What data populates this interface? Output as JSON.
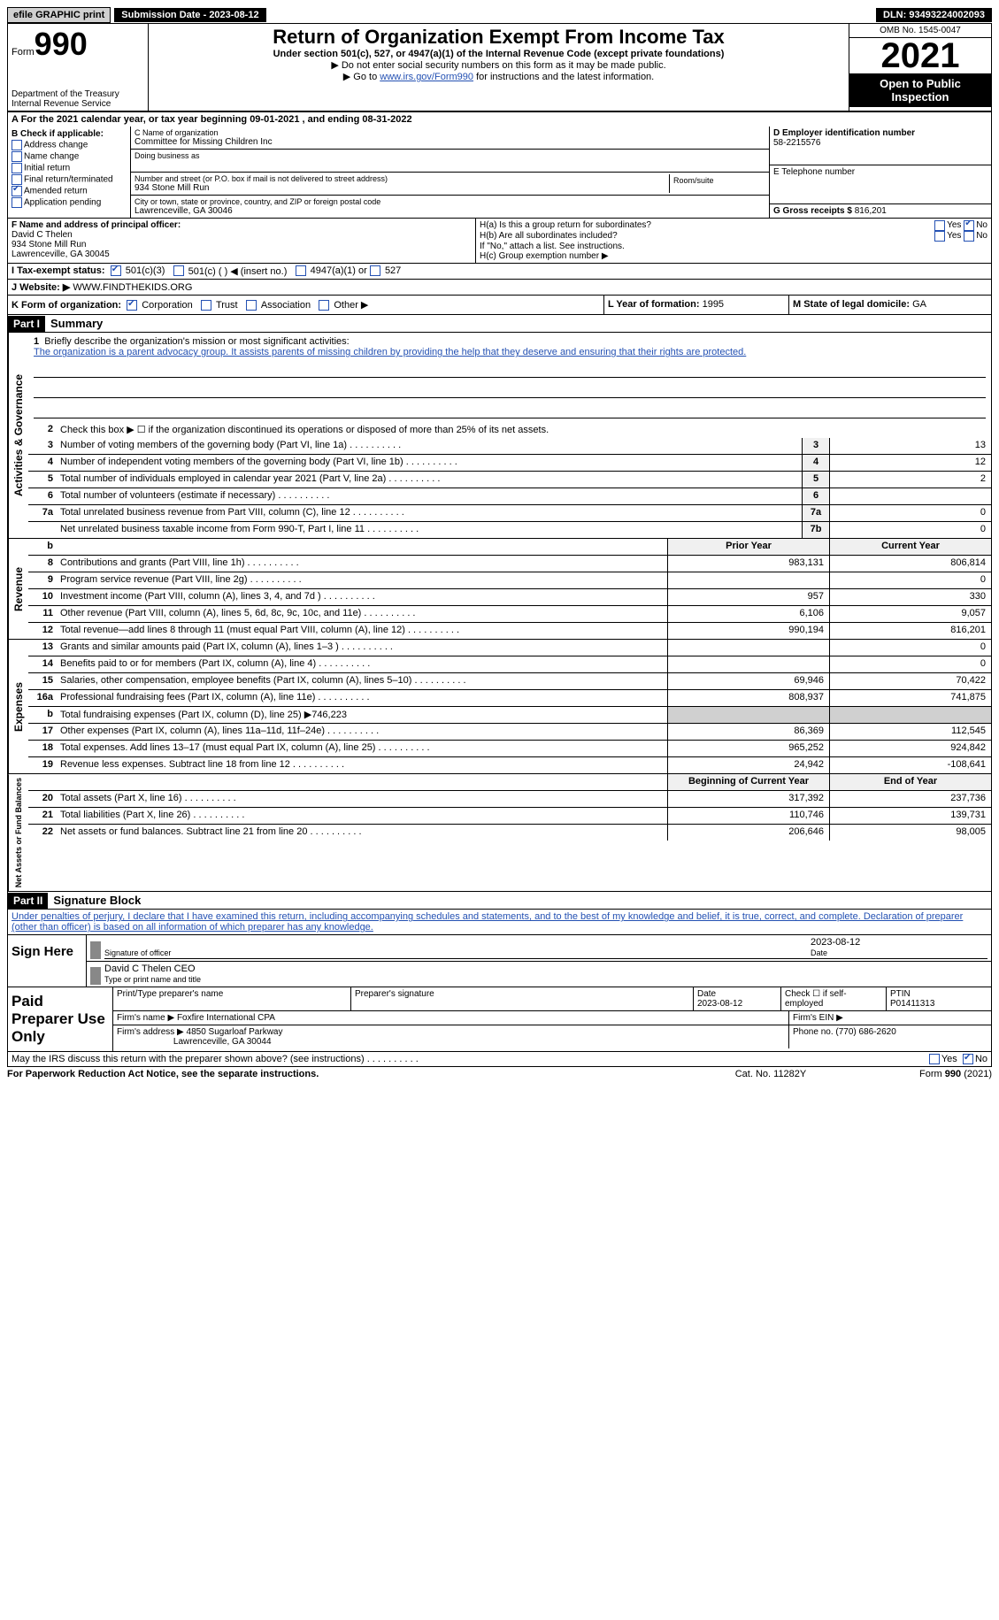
{
  "topbar": {
    "efile": "efile GRAPHIC print",
    "submission": "Submission Date - 2023-08-12",
    "dln": "DLN: 93493224002093"
  },
  "header": {
    "form_word": "Form",
    "form_no": "990",
    "dept": "Department of the Treasury",
    "irs": "Internal Revenue Service",
    "title": "Return of Organization Exempt From Income Tax",
    "sub": "Under section 501(c), 527, or 4947(a)(1) of the Internal Revenue Code (except private foundations)",
    "note1": "▶ Do not enter social security numbers on this form as it may be made public.",
    "note2_pre": "▶ Go to ",
    "note2_link": "www.irs.gov/Form990",
    "note2_post": " for instructions and the latest information.",
    "omb": "OMB No. 1545-0047",
    "year": "2021",
    "open": "Open to Public Inspection"
  },
  "rowA": "A For the 2021 calendar year, or tax year beginning 09-01-2021   , and ending 08-31-2022",
  "b": {
    "label": "B Check if applicable:",
    "addr": "Address change",
    "name": "Name change",
    "initial": "Initial return",
    "final": "Final return/terminated",
    "amended": "Amended return",
    "pending": "Application pending"
  },
  "c": {
    "name_lbl": "C Name of organization",
    "name": "Committee for Missing Children Inc",
    "dba_lbl": "Doing business as",
    "street_lbl": "Number and street (or P.O. box if mail is not delivered to street address)",
    "street": "934 Stone Mill Run",
    "room_lbl": "Room/suite",
    "city_lbl": "City or town, state or province, country, and ZIP or foreign postal code",
    "city": "Lawrenceville, GA  30046"
  },
  "d": {
    "ein_lbl": "D Employer identification number",
    "ein": "58-2215576",
    "tel_lbl": "E Telephone number",
    "gross_lbl": "G Gross receipts $",
    "gross": "816,201"
  },
  "f": {
    "lbl": "F  Name and address of principal officer:",
    "name": "David C Thelen",
    "street": "934 Stone Mill Run",
    "city": "Lawrenceville, GA  30045"
  },
  "h": {
    "a": "H(a)  Is this a group return for subordinates?",
    "b": "H(b)  Are all subordinates included?",
    "note": "If \"No,\" attach a list. See instructions.",
    "c": "H(c)  Group exemption number ▶",
    "yes": "Yes",
    "no": "No"
  },
  "i": {
    "lbl": "I   Tax-exempt status:",
    "o1": "501(c)(3)",
    "o2": "501(c) (  ) ◀ (insert no.)",
    "o3": "4947(a)(1) or",
    "o4": "527"
  },
  "j": {
    "lbl": "J  Website: ▶ ",
    "val": "WWW.FINDTHEKIDS.ORG"
  },
  "k": {
    "lbl": "K Form of organization:",
    "corp": "Corporation",
    "trust": "Trust",
    "assoc": "Association",
    "other": "Other ▶"
  },
  "l": {
    "lbl": "L Year of formation:",
    "val": "1995"
  },
  "m": {
    "lbl": "M State of legal domicile:",
    "val": "GA"
  },
  "part1": {
    "hdr": "Part I",
    "title": "Summary",
    "vtab_ag": "Activities & Governance",
    "vtab_rev": "Revenue",
    "vtab_exp": "Expenses",
    "vtab_na": "Net Assets or Fund Balances",
    "line1_lbl": "1",
    "line1": "Briefly describe the organization's mission or most significant activities:",
    "mission": "The organization is a parent advocacy group. It assists parents of missing children by providing the help that they deserve and ensuring that their rights are protected.",
    "line2_lbl": "2",
    "line2": "Check this box ▶ ☐  if the organization discontinued its operations or disposed of more than 25% of its net assets.",
    "rows_ag": [
      {
        "n": "3",
        "d": "Number of voting members of the governing body (Part VI, line 1a)",
        "b": "3",
        "v": "13"
      },
      {
        "n": "4",
        "d": "Number of independent voting members of the governing body (Part VI, line 1b)",
        "b": "4",
        "v": "12"
      },
      {
        "n": "5",
        "d": "Total number of individuals employed in calendar year 2021 (Part V, line 2a)",
        "b": "5",
        "v": "2"
      },
      {
        "n": "6",
        "d": "Total number of volunteers (estimate if necessary)",
        "b": "6",
        "v": ""
      },
      {
        "n": "7a",
        "d": "Total unrelated business revenue from Part VIII, column (C), line 12",
        "b": "7a",
        "v": "0"
      },
      {
        "n": "",
        "d": "Net unrelated business taxable income from Form 990-T, Part I, line 11",
        "b": "7b",
        "v": "0"
      }
    ],
    "col_prior": "Prior Year",
    "col_curr": "Current Year",
    "rows_rev": [
      {
        "n": "8",
        "d": "Contributions and grants (Part VIII, line 1h)",
        "p": "983,131",
        "c": "806,814"
      },
      {
        "n": "9",
        "d": "Program service revenue (Part VIII, line 2g)",
        "p": "",
        "c": "0"
      },
      {
        "n": "10",
        "d": "Investment income (Part VIII, column (A), lines 3, 4, and 7d )",
        "p": "957",
        "c": "330"
      },
      {
        "n": "11",
        "d": "Other revenue (Part VIII, column (A), lines 5, 6d, 8c, 9c, 10c, and 11e)",
        "p": "6,106",
        "c": "9,057"
      },
      {
        "n": "12",
        "d": "Total revenue—add lines 8 through 11 (must equal Part VIII, column (A), line 12)",
        "p": "990,194",
        "c": "816,201"
      }
    ],
    "rows_exp": [
      {
        "n": "13",
        "d": "Grants and similar amounts paid (Part IX, column (A), lines 1–3 )",
        "p": "",
        "c": "0"
      },
      {
        "n": "14",
        "d": "Benefits paid to or for members (Part IX, column (A), line 4)",
        "p": "",
        "c": "0"
      },
      {
        "n": "15",
        "d": "Salaries, other compensation, employee benefits (Part IX, column (A), lines 5–10)",
        "p": "69,946",
        "c": "70,422"
      },
      {
        "n": "16a",
        "d": "Professional fundraising fees (Part IX, column (A), line 11e)",
        "p": "808,937",
        "c": "741,875"
      },
      {
        "n": "b",
        "d": "Total fundraising expenses (Part IX, column (D), line 25) ▶746,223",
        "p": "SHADE",
        "c": "SHADE"
      },
      {
        "n": "17",
        "d": "Other expenses (Part IX, column (A), lines 11a–11d, 11f–24e)",
        "p": "86,369",
        "c": "112,545"
      },
      {
        "n": "18",
        "d": "Total expenses. Add lines 13–17 (must equal Part IX, column (A), line 25)",
        "p": "965,252",
        "c": "924,842"
      },
      {
        "n": "19",
        "d": "Revenue less expenses. Subtract line 18 from line 12",
        "p": "24,942",
        "c": "-108,641"
      }
    ],
    "col_beg": "Beginning of Current Year",
    "col_end": "End of Year",
    "rows_na": [
      {
        "n": "20",
        "d": "Total assets (Part X, line 16)",
        "p": "317,392",
        "c": "237,736"
      },
      {
        "n": "21",
        "d": "Total liabilities (Part X, line 26)",
        "p": "110,746",
        "c": "139,731"
      },
      {
        "n": "22",
        "d": "Net assets or fund balances. Subtract line 21 from line 20",
        "p": "206,646",
        "c": "98,005"
      }
    ]
  },
  "part2": {
    "hdr": "Part II",
    "title": "Signature Block",
    "decl": "Under penalties of perjury, I declare that I have examined this return, including accompanying schedules and statements, and to the best of my knowledge and belief, it is true, correct, and complete. Declaration of preparer (other than officer) is based on all information of which preparer has any knowledge."
  },
  "sign": {
    "here": "Sign Here",
    "sig_lbl": "Signature of officer",
    "date": "2023-08-12",
    "date_lbl": "Date",
    "name": "David C Thelen  CEO",
    "name_lbl": "Type or print name and title"
  },
  "prep": {
    "title": "Paid Preparer Use Only",
    "pt_lbl": "Print/Type preparer's name",
    "sig_lbl": "Preparer's signature",
    "date_lbl": "Date",
    "date": "2023-08-12",
    "check_lbl": "Check ☐ if self-employed",
    "ptin_lbl": "PTIN",
    "ptin": "P01411313",
    "firm_lbl": "Firm's name      ▶",
    "firm": "Foxfire International CPA",
    "ein_lbl": "Firm's EIN ▶",
    "addr_lbl": "Firm's address ▶",
    "addr1": "4850 Sugarloaf Parkway",
    "addr2": "Lawrenceville, GA  30044",
    "phone_lbl": "Phone no.",
    "phone": "(770) 686-2620"
  },
  "footer": {
    "q": "May the IRS discuss this return with the preparer shown above? (see instructions)",
    "yes": "Yes",
    "no": "No",
    "pra": "For Paperwork Reduction Act Notice, see the separate instructions.",
    "cat": "Cat. No. 11282Y",
    "form": "Form 990 (2021)"
  }
}
